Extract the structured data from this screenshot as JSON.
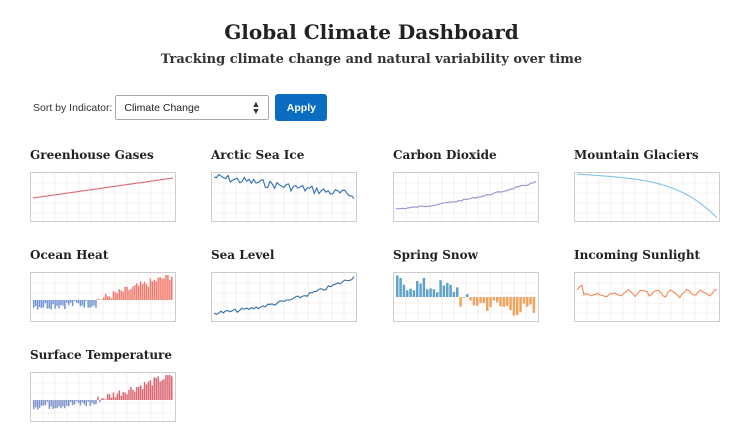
{
  "header": {
    "title": "Global Climate Dashboard",
    "subtitle": "Tracking climate change and natural variability over time"
  },
  "controls": {
    "sort_label": "Sort by Indicator:",
    "sort_value": "Climate Change",
    "apply_label": "Apply"
  },
  "charts": [
    {
      "label": "Greenhouse Gases",
      "type": "line",
      "color": "#d9676b",
      "trend": "rising-linear"
    },
    {
      "label": "Arctic Sea Ice",
      "type": "line",
      "color": "#2f6fb0",
      "trend": "declining-noisy"
    },
    {
      "label": "Carbon Dioxide",
      "type": "line",
      "color": "#9b8fd6",
      "trend": "rising-curve"
    },
    {
      "label": "Mountain Glaciers",
      "type": "line",
      "color": "#7ec3e6",
      "trend": "declining-accelerating"
    },
    {
      "label": "Ocean Heat",
      "type": "bar",
      "color_positive": "#f0776a",
      "color_negative": "#6f93d6",
      "trend": "negative-to-positive"
    },
    {
      "label": "Sea Level",
      "type": "line",
      "color": "#2f6fa2",
      "trend": "rising-noisy"
    },
    {
      "label": "Spring Snow",
      "type": "bar",
      "color_positive": "#5fa3c9",
      "color_negative": "#f0a35c",
      "trend": "positive-to-negative"
    },
    {
      "label": "Incoming Sunlight",
      "type": "line",
      "color": "#ef8a55",
      "trend": "oscillating"
    },
    {
      "label": "Surface Temperature",
      "type": "bar",
      "color_positive": "#d9636e",
      "color_negative": "#7b93cc",
      "trend": "negative-to-positive"
    }
  ]
}
